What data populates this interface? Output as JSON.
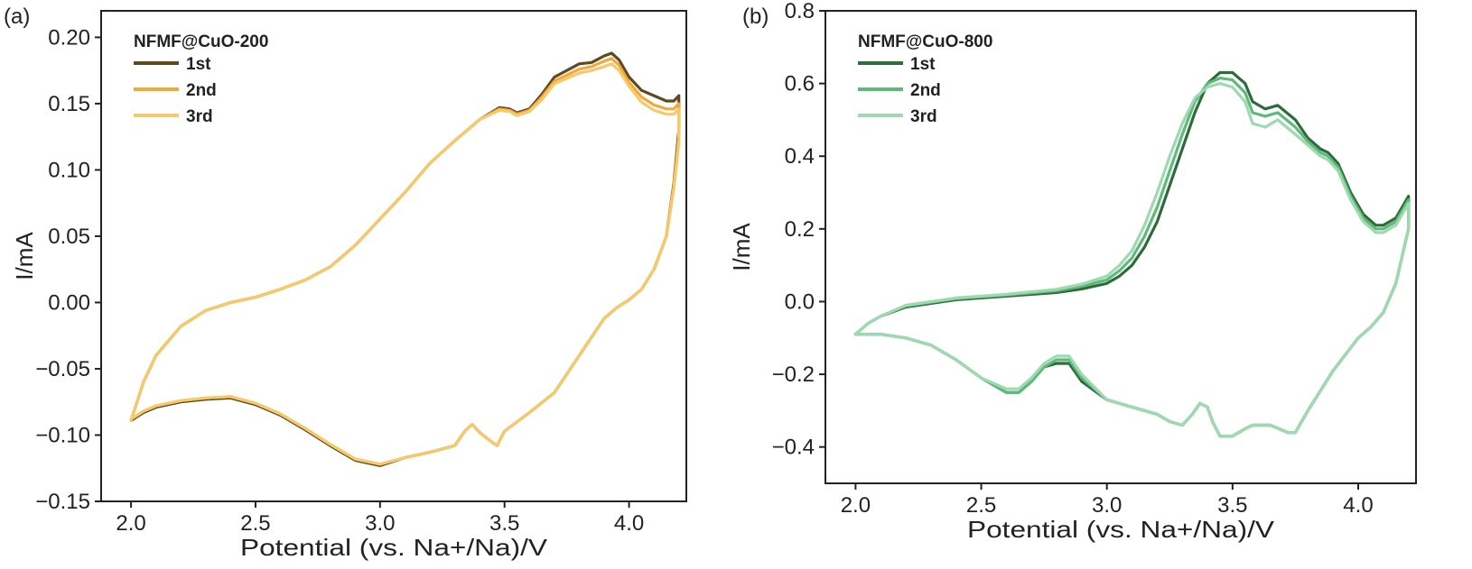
{
  "chart_data": [
    {
      "panel_label": "(a)",
      "type": "line",
      "title": "NFMF@CuO-200",
      "xlabel": "Potential (vs. Na+/Na)/V",
      "ylabel": "I/mA",
      "xlim": [
        1.88,
        4.23
      ],
      "ylim": [
        -0.15,
        0.22
      ],
      "xticks": [
        2.0,
        2.5,
        3.0,
        3.5,
        4.0
      ],
      "xtick_labels": [
        "2.0",
        "2.5",
        "3.0",
        "3.5",
        "4.0"
      ],
      "yticks": [
        -0.15,
        -0.1,
        -0.05,
        0.0,
        0.05,
        0.1,
        0.15,
        0.2
      ],
      "ytick_labels": [
        "−0.15",
        "−0.10",
        "−0.05",
        "0.00",
        "0.05",
        "0.10",
        "0.15",
        "0.20"
      ],
      "legend_position": "top-left",
      "series": [
        {
          "name": "1st",
          "color": "#5e4a1e",
          "x": [
            2.0,
            2.05,
            2.1,
            2.2,
            2.3,
            2.4,
            2.5,
            2.6,
            2.7,
            2.8,
            2.9,
            3.0,
            3.1,
            3.2,
            3.3,
            3.4,
            3.48,
            3.52,
            3.55,
            3.6,
            3.65,
            3.7,
            3.8,
            3.85,
            3.9,
            3.93,
            3.96,
            4.0,
            4.05,
            4.1,
            4.15,
            4.18,
            4.2,
            4.2,
            4.18,
            4.15,
            4.1,
            4.05,
            4.0,
            3.95,
            3.9,
            3.8,
            3.7,
            3.6,
            3.5,
            3.47,
            3.44,
            3.4,
            3.37,
            3.34,
            3.3,
            3.2,
            3.1,
            3.0,
            2.9,
            2.8,
            2.7,
            2.6,
            2.5,
            2.4,
            2.3,
            2.2,
            2.1,
            2.05,
            2.0
          ],
          "y": [
            -0.089,
            -0.06,
            -0.04,
            -0.018,
            -0.006,
            0.0,
            0.004,
            0.01,
            0.017,
            0.027,
            0.043,
            0.063,
            0.083,
            0.105,
            0.122,
            0.138,
            0.147,
            0.146,
            0.143,
            0.146,
            0.157,
            0.17,
            0.18,
            0.181,
            0.186,
            0.188,
            0.183,
            0.17,
            0.16,
            0.156,
            0.152,
            0.152,
            0.156,
            0.13,
            0.09,
            0.05,
            0.025,
            0.01,
            0.002,
            -0.004,
            -0.012,
            -0.04,
            -0.068,
            -0.083,
            -0.097,
            -0.108,
            -0.104,
            -0.098,
            -0.092,
            -0.097,
            -0.108,
            -0.113,
            -0.117,
            -0.123,
            -0.119,
            -0.108,
            -0.096,
            -0.085,
            -0.077,
            -0.072,
            -0.073,
            -0.075,
            -0.079,
            -0.083,
            -0.089
          ]
        },
        {
          "name": "2nd",
          "color": "#f2a93a",
          "x": [
            2.0,
            2.05,
            2.1,
            2.2,
            2.3,
            2.4,
            2.5,
            2.6,
            2.7,
            2.8,
            2.9,
            3.0,
            3.1,
            3.2,
            3.3,
            3.4,
            3.48,
            3.52,
            3.55,
            3.6,
            3.65,
            3.7,
            3.8,
            3.85,
            3.9,
            3.93,
            3.96,
            4.0,
            4.05,
            4.1,
            4.15,
            4.18,
            4.2,
            4.2,
            4.18,
            4.15,
            4.1,
            4.05,
            4.0,
            3.95,
            3.9,
            3.8,
            3.7,
            3.6,
            3.5,
            3.47,
            3.44,
            3.4,
            3.37,
            3.34,
            3.3,
            3.2,
            3.1,
            3.0,
            2.9,
            2.8,
            2.7,
            2.6,
            2.5,
            2.4,
            2.3,
            2.2,
            2.1,
            2.05,
            2.0
          ],
          "y": [
            -0.089,
            -0.06,
            -0.04,
            -0.018,
            -0.006,
            0.0,
            0.004,
            0.01,
            0.017,
            0.027,
            0.043,
            0.063,
            0.083,
            0.105,
            0.122,
            0.138,
            0.146,
            0.145,
            0.142,
            0.145,
            0.155,
            0.167,
            0.176,
            0.178,
            0.182,
            0.184,
            0.179,
            0.166,
            0.155,
            0.149,
            0.146,
            0.146,
            0.15,
            0.125,
            0.088,
            0.05,
            0.025,
            0.01,
            0.002,
            -0.004,
            -0.012,
            -0.04,
            -0.068,
            -0.083,
            -0.097,
            -0.108,
            -0.104,
            -0.098,
            -0.092,
            -0.097,
            -0.108,
            -0.113,
            -0.117,
            -0.122,
            -0.118,
            -0.107,
            -0.095,
            -0.084,
            -0.076,
            -0.071,
            -0.072,
            -0.074,
            -0.078,
            -0.082,
            -0.088
          ]
        },
        {
          "name": "3rd",
          "color": "#f6c96a",
          "x": [
            2.0,
            2.05,
            2.1,
            2.2,
            2.3,
            2.4,
            2.5,
            2.6,
            2.7,
            2.8,
            2.9,
            3.0,
            3.1,
            3.2,
            3.3,
            3.4,
            3.48,
            3.52,
            3.55,
            3.6,
            3.65,
            3.7,
            3.8,
            3.85,
            3.9,
            3.93,
            3.96,
            4.0,
            4.05,
            4.1,
            4.15,
            4.18,
            4.2,
            4.2,
            4.18,
            4.15,
            4.1,
            4.05,
            4.0,
            3.95,
            3.9,
            3.8,
            3.7,
            3.6,
            3.5,
            3.47,
            3.44,
            3.4,
            3.37,
            3.34,
            3.3,
            3.2,
            3.1,
            3.0,
            2.9,
            2.8,
            2.7,
            2.6,
            2.5,
            2.4,
            2.3,
            2.2,
            2.1,
            2.05,
            2.0
          ],
          "y": [
            -0.089,
            -0.06,
            -0.04,
            -0.018,
            -0.006,
            0.0,
            0.004,
            0.01,
            0.017,
            0.027,
            0.043,
            0.063,
            0.083,
            0.105,
            0.122,
            0.138,
            0.145,
            0.144,
            0.141,
            0.144,
            0.153,
            0.165,
            0.173,
            0.175,
            0.178,
            0.18,
            0.175,
            0.163,
            0.151,
            0.145,
            0.142,
            0.142,
            0.146,
            0.12,
            0.086,
            0.05,
            0.025,
            0.01,
            0.002,
            -0.004,
            -0.012,
            -0.04,
            -0.068,
            -0.083,
            -0.097,
            -0.108,
            -0.104,
            -0.098,
            -0.092,
            -0.097,
            -0.108,
            -0.113,
            -0.117,
            -0.122,
            -0.118,
            -0.107,
            -0.095,
            -0.084,
            -0.076,
            -0.071,
            -0.072,
            -0.074,
            -0.078,
            -0.082,
            -0.088
          ]
        }
      ]
    },
    {
      "panel_label": "(b)",
      "type": "line",
      "title": "NFMF@CuO-800",
      "xlabel": "Potential (vs. Na+/Na)/V",
      "ylabel": "I/mA",
      "xlim": [
        1.88,
        4.23
      ],
      "ylim": [
        -0.5,
        0.8
      ],
      "xticks": [
        2.0,
        2.5,
        3.0,
        3.5,
        4.0
      ],
      "xtick_labels": [
        "2.0",
        "2.5",
        "3.0",
        "3.5",
        "4.0"
      ],
      "yticks": [
        -0.4,
        -0.2,
        0.0,
        0.2,
        0.4,
        0.6,
        0.8
      ],
      "ytick_labels": [
        "−0.4",
        "−0.2",
        "0.0",
        "0.2",
        "0.4",
        "0.6",
        "0.8"
      ],
      "legend_position": "top-left",
      "series": [
        {
          "name": "1st",
          "color": "#2e6b3a",
          "x": [
            2.0,
            2.05,
            2.1,
            2.2,
            2.4,
            2.6,
            2.8,
            2.9,
            3.0,
            3.05,
            3.1,
            3.15,
            3.2,
            3.25,
            3.3,
            3.35,
            3.4,
            3.45,
            3.5,
            3.55,
            3.58,
            3.63,
            3.68,
            3.75,
            3.8,
            3.85,
            3.88,
            3.92,
            3.97,
            4.02,
            4.07,
            4.1,
            4.15,
            4.2,
            4.2,
            4.15,
            4.1,
            4.05,
            4.0,
            3.9,
            3.8,
            3.75,
            3.72,
            3.65,
            3.58,
            3.55,
            3.5,
            3.45,
            3.42,
            3.4,
            3.37,
            3.34,
            3.3,
            3.25,
            3.2,
            3.1,
            3.0,
            2.9,
            2.85,
            2.8,
            2.75,
            2.7,
            2.65,
            2.6,
            2.5,
            2.4,
            2.3,
            2.2,
            2.1,
            2.05,
            2.0
          ],
          "y": [
            -0.09,
            -0.06,
            -0.04,
            -0.015,
            0.005,
            0.015,
            0.025,
            0.035,
            0.05,
            0.07,
            0.1,
            0.15,
            0.22,
            0.32,
            0.42,
            0.52,
            0.6,
            0.63,
            0.63,
            0.6,
            0.55,
            0.53,
            0.54,
            0.5,
            0.45,
            0.42,
            0.41,
            0.38,
            0.3,
            0.24,
            0.21,
            0.21,
            0.23,
            0.29,
            0.2,
            0.05,
            -0.03,
            -0.07,
            -0.1,
            -0.19,
            -0.3,
            -0.36,
            -0.36,
            -0.34,
            -0.34,
            -0.35,
            -0.37,
            -0.37,
            -0.33,
            -0.29,
            -0.28,
            -0.31,
            -0.34,
            -0.33,
            -0.31,
            -0.29,
            -0.27,
            -0.22,
            -0.17,
            -0.17,
            -0.18,
            -0.22,
            -0.25,
            -0.25,
            -0.21,
            -0.16,
            -0.12,
            -0.1,
            -0.09,
            -0.09,
            -0.09
          ]
        },
        {
          "name": "2nd",
          "color": "#5dba7b",
          "x": [
            2.0,
            2.05,
            2.1,
            2.2,
            2.4,
            2.6,
            2.8,
            2.9,
            3.0,
            3.05,
            3.1,
            3.15,
            3.2,
            3.25,
            3.3,
            3.35,
            3.4,
            3.45,
            3.5,
            3.55,
            3.58,
            3.63,
            3.68,
            3.75,
            3.8,
            3.85,
            3.88,
            3.92,
            3.97,
            4.02,
            4.07,
            4.1,
            4.15,
            4.2,
            4.2,
            4.15,
            4.1,
            4.05,
            4.0,
            3.9,
            3.8,
            3.75,
            3.72,
            3.65,
            3.58,
            3.55,
            3.5,
            3.45,
            3.42,
            3.4,
            3.37,
            3.34,
            3.3,
            3.25,
            3.2,
            3.1,
            3.0,
            2.9,
            2.85,
            2.8,
            2.75,
            2.7,
            2.65,
            2.6,
            2.5,
            2.4,
            2.3,
            2.2,
            2.1,
            2.05,
            2.0
          ],
          "y": [
            -0.09,
            -0.06,
            -0.04,
            -0.012,
            0.008,
            0.018,
            0.03,
            0.042,
            0.06,
            0.085,
            0.12,
            0.18,
            0.26,
            0.36,
            0.46,
            0.55,
            0.6,
            0.615,
            0.61,
            0.575,
            0.52,
            0.51,
            0.52,
            0.48,
            0.44,
            0.41,
            0.4,
            0.37,
            0.29,
            0.23,
            0.2,
            0.2,
            0.22,
            0.28,
            0.2,
            0.05,
            -0.03,
            -0.07,
            -0.1,
            -0.19,
            -0.3,
            -0.36,
            -0.36,
            -0.34,
            -0.34,
            -0.35,
            -0.37,
            -0.37,
            -0.33,
            -0.29,
            -0.28,
            -0.31,
            -0.34,
            -0.33,
            -0.31,
            -0.29,
            -0.27,
            -0.21,
            -0.16,
            -0.16,
            -0.18,
            -0.22,
            -0.25,
            -0.25,
            -0.21,
            -0.16,
            -0.12,
            -0.1,
            -0.09,
            -0.09,
            -0.09
          ]
        },
        {
          "name": "3rd",
          "color": "#9fd9b0",
          "x": [
            2.0,
            2.05,
            2.1,
            2.2,
            2.4,
            2.6,
            2.8,
            2.9,
            3.0,
            3.05,
            3.1,
            3.15,
            3.2,
            3.25,
            3.3,
            3.35,
            3.4,
            3.45,
            3.5,
            3.55,
            3.58,
            3.63,
            3.68,
            3.75,
            3.8,
            3.85,
            3.88,
            3.92,
            3.97,
            4.02,
            4.07,
            4.1,
            4.15,
            4.2,
            4.2,
            4.15,
            4.1,
            4.05,
            4.0,
            3.9,
            3.8,
            3.75,
            3.72,
            3.65,
            3.58,
            3.55,
            3.5,
            3.45,
            3.42,
            3.4,
            3.37,
            3.34,
            3.3,
            3.25,
            3.2,
            3.1,
            3.0,
            2.9,
            2.85,
            2.8,
            2.75,
            2.7,
            2.65,
            2.6,
            2.5,
            2.4,
            2.3,
            2.2,
            2.1,
            2.05,
            2.0
          ],
          "y": [
            -0.09,
            -0.06,
            -0.04,
            -0.01,
            0.01,
            0.02,
            0.034,
            0.048,
            0.07,
            0.1,
            0.14,
            0.21,
            0.3,
            0.4,
            0.49,
            0.56,
            0.59,
            0.6,
            0.59,
            0.55,
            0.49,
            0.48,
            0.5,
            0.46,
            0.43,
            0.4,
            0.39,
            0.36,
            0.28,
            0.22,
            0.19,
            0.19,
            0.21,
            0.27,
            0.2,
            0.05,
            -0.03,
            -0.07,
            -0.1,
            -0.19,
            -0.3,
            -0.36,
            -0.36,
            -0.34,
            -0.34,
            -0.35,
            -0.37,
            -0.37,
            -0.33,
            -0.29,
            -0.28,
            -0.31,
            -0.34,
            -0.33,
            -0.31,
            -0.29,
            -0.27,
            -0.2,
            -0.15,
            -0.15,
            -0.17,
            -0.21,
            -0.24,
            -0.24,
            -0.21,
            -0.16,
            -0.12,
            -0.1,
            -0.09,
            -0.09,
            -0.09
          ]
        }
      ]
    }
  ]
}
